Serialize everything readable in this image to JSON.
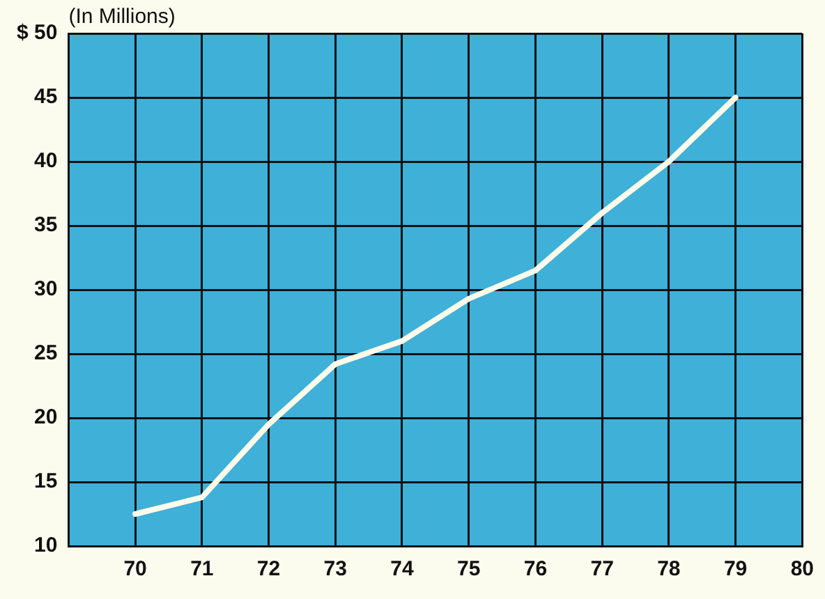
{
  "chart_data": {
    "type": "line",
    "ylabel": "(In Millions)",
    "x": [
      70,
      71,
      72,
      73,
      74,
      75,
      76,
      77,
      78,
      79
    ],
    "series": [
      {
        "color": "#fffbea",
        "values": [
          12.5,
          13.8,
          19.5,
          24.2,
          26,
          29.3,
          31.5,
          36,
          40,
          45
        ]
      }
    ],
    "xlim": [
      69,
      80
    ],
    "xticks": [
      70,
      71,
      72,
      73,
      74,
      75,
      76,
      77,
      78,
      79,
      80
    ],
    "ylim": [
      10,
      50
    ],
    "yticks": [
      10,
      15,
      20,
      25,
      30,
      35,
      40,
      {
        "value": 50,
        "label": "$ 50"
      },
      45
    ],
    "grid": true,
    "legend": false,
    "marker": "none",
    "line_style": "solid"
  }
}
